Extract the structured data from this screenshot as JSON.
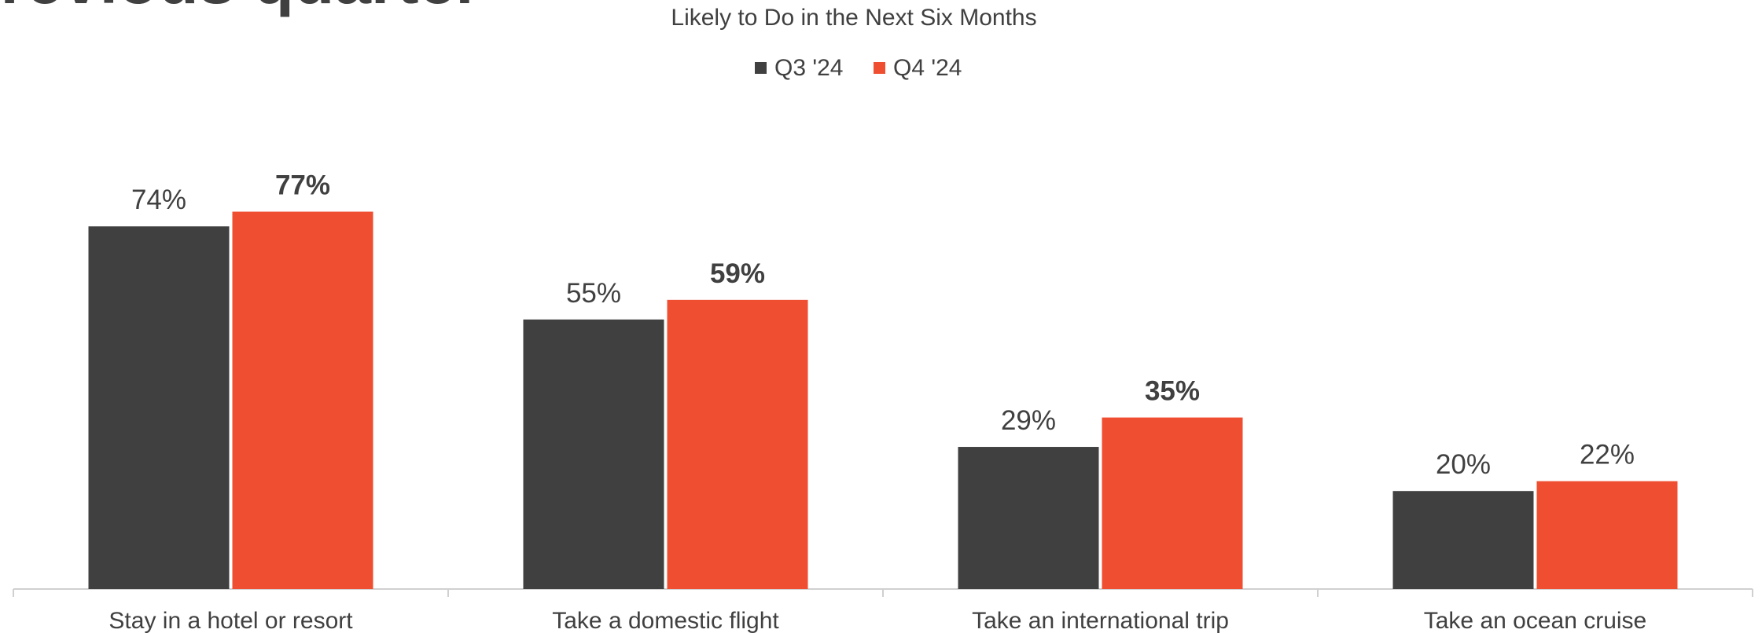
{
  "chart_data": {
    "type": "bar",
    "title": "previous quarter",
    "subtitle": "Likely to Do in the Next Six Months",
    "categories": [
      "Stay in a hotel or resort",
      "Take a domestic flight",
      "Take an international trip",
      "Take an ocean cruise"
    ],
    "series": [
      {
        "name": "Q3 '24",
        "color": "#404040",
        "values": [
          74,
          55,
          29,
          20
        ],
        "value_labels": [
          "74%",
          "55%",
          "29%",
          "20%"
        ],
        "value_label_bold": [
          false,
          false,
          false,
          false
        ]
      },
      {
        "name": "Q4 '24",
        "color": "#f04e30",
        "values": [
          77,
          59,
          35,
          22
        ],
        "value_labels": [
          "77%",
          "59%",
          "35%",
          "22%"
        ],
        "value_label_bold": [
          true,
          true,
          true,
          false
        ]
      }
    ],
    "ylim": [
      0,
      100
    ],
    "legend": "top"
  }
}
